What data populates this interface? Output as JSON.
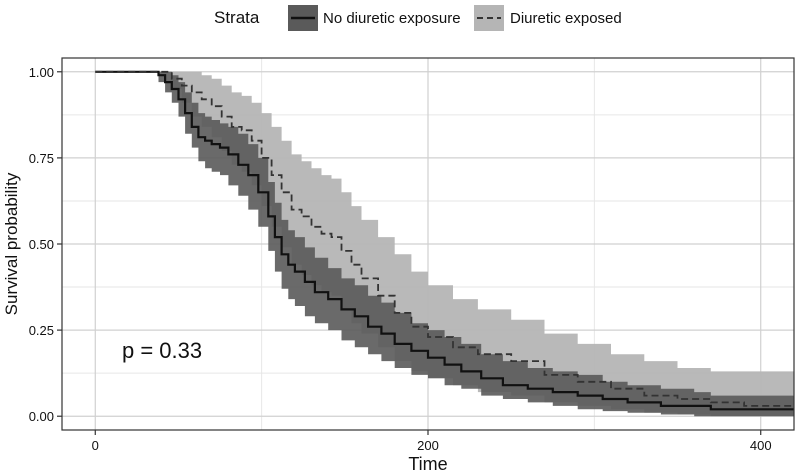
{
  "chart_data": {
    "type": "line",
    "xlabel": "Time",
    "ylabel": "Survival probability",
    "xlim": [
      -20,
      420
    ],
    "ylim": [
      -0.04,
      1.04
    ],
    "x_ticks": [
      0,
      200,
      400
    ],
    "x_tick_labels": [
      "0",
      "200",
      "400"
    ],
    "y_ticks": [
      0,
      0.25,
      0.5,
      0.75,
      1
    ],
    "y_tick_labels": [
      "0.00",
      "0.25",
      "0.50",
      "0.75",
      "1.00"
    ],
    "grid": true,
    "legend": {
      "position": "top",
      "title": "Strata",
      "entries": [
        "No diuretic exposure",
        "Diuretic exposed"
      ]
    },
    "annotation": "p = 0.33",
    "annotation_position": [
      30,
      0.18
    ],
    "series": [
      {
        "name": "No diuretic exposure",
        "line_style": "solid",
        "line_color": "#111111",
        "band_color": "#5a5a5a",
        "x": [
          0,
          30,
          38,
          42,
          46,
          50,
          54,
          58,
          62,
          66,
          70,
          75,
          80,
          86,
          92,
          98,
          104,
          108,
          112,
          116,
          120,
          126,
          132,
          140,
          148,
          156,
          164,
          172,
          180,
          190,
          200,
          210,
          220,
          232,
          245,
          260,
          275,
          290,
          305,
          320,
          340,
          360,
          370,
          380,
          400,
          420
        ],
        "y": [
          1.0,
          1.0,
          0.99,
          0.97,
          0.95,
          0.92,
          0.88,
          0.84,
          0.81,
          0.8,
          0.79,
          0.78,
          0.76,
          0.73,
          0.7,
          0.65,
          0.58,
          0.52,
          0.47,
          0.44,
          0.42,
          0.39,
          0.36,
          0.34,
          0.31,
          0.29,
          0.26,
          0.24,
          0.21,
          0.19,
          0.17,
          0.15,
          0.13,
          0.11,
          0.09,
          0.08,
          0.07,
          0.06,
          0.05,
          0.04,
          0.03,
          0.03,
          0.02,
          0.02,
          0.02,
          0.02
        ],
        "lower": [
          1.0,
          1.0,
          0.97,
          0.94,
          0.91,
          0.87,
          0.82,
          0.78,
          0.74,
          0.72,
          0.71,
          0.7,
          0.67,
          0.64,
          0.6,
          0.55,
          0.48,
          0.42,
          0.37,
          0.34,
          0.32,
          0.29,
          0.27,
          0.25,
          0.22,
          0.2,
          0.18,
          0.16,
          0.14,
          0.12,
          0.11,
          0.09,
          0.08,
          0.06,
          0.05,
          0.04,
          0.03,
          0.02,
          0.015,
          0.01,
          0.005,
          0.0,
          0.0,
          0.0,
          0.0,
          0.0
        ],
        "upper": [
          1.0,
          1.0,
          1.0,
          1.0,
          0.99,
          0.97,
          0.94,
          0.91,
          0.88,
          0.87,
          0.86,
          0.85,
          0.84,
          0.82,
          0.79,
          0.75,
          0.68,
          0.62,
          0.57,
          0.54,
          0.52,
          0.49,
          0.46,
          0.43,
          0.4,
          0.38,
          0.35,
          0.33,
          0.3,
          0.27,
          0.25,
          0.23,
          0.21,
          0.18,
          0.16,
          0.14,
          0.13,
          0.12,
          0.1,
          0.09,
          0.08,
          0.07,
          0.06,
          0.06,
          0.06,
          0.06
        ]
      },
      {
        "name": "Diuretic exposed",
        "line_style": "dashed",
        "line_color": "#333333",
        "band_color": "#b5b5b5",
        "x": [
          0,
          40,
          46,
          52,
          58,
          64,
          70,
          76,
          82,
          88,
          94,
          100,
          106,
          112,
          118,
          124,
          130,
          136,
          142,
          148,
          154,
          160,
          170,
          180,
          190,
          200,
          215,
          230,
          250,
          270,
          290,
          310,
          330,
          350,
          370,
          390,
          420
        ],
        "y": [
          1.0,
          1.0,
          0.98,
          0.96,
          0.94,
          0.92,
          0.9,
          0.87,
          0.84,
          0.83,
          0.8,
          0.75,
          0.7,
          0.65,
          0.6,
          0.58,
          0.55,
          0.53,
          0.52,
          0.48,
          0.44,
          0.4,
          0.35,
          0.3,
          0.26,
          0.23,
          0.2,
          0.18,
          0.16,
          0.12,
          0.1,
          0.08,
          0.06,
          0.05,
          0.04,
          0.03,
          0.03
        ],
        "lower": [
          1.0,
          1.0,
          0.95,
          0.91,
          0.87,
          0.84,
          0.81,
          0.77,
          0.73,
          0.71,
          0.67,
          0.61,
          0.55,
          0.49,
          0.44,
          0.41,
          0.38,
          0.36,
          0.35,
          0.31,
          0.27,
          0.24,
          0.2,
          0.16,
          0.13,
          0.11,
          0.09,
          0.07,
          0.06,
          0.04,
          0.03,
          0.02,
          0.01,
          0.005,
          0.0,
          0.0,
          0.0
        ],
        "upper": [
          1.0,
          1.0,
          1.0,
          1.0,
          1.0,
          0.99,
          0.98,
          0.96,
          0.94,
          0.93,
          0.91,
          0.88,
          0.84,
          0.8,
          0.76,
          0.74,
          0.72,
          0.7,
          0.69,
          0.65,
          0.61,
          0.57,
          0.52,
          0.47,
          0.42,
          0.38,
          0.34,
          0.31,
          0.28,
          0.24,
          0.21,
          0.18,
          0.16,
          0.14,
          0.13,
          0.13,
          0.13
        ]
      }
    ]
  }
}
